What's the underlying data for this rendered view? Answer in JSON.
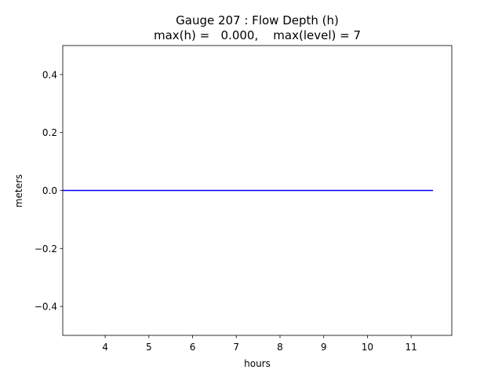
{
  "chart_data": {
    "type": "line",
    "title": "Gauge 207 : Flow Depth (h)",
    "subtitle": "max(h) =   0.000,    max(level) = 7",
    "x_label": "hours",
    "y_label": "meters",
    "x": [
      3.03,
      11.5
    ],
    "series": [
      {
        "color": "#0000ff",
        "values": [
          0,
          0
        ]
      }
    ],
    "xlim": [
      3.03,
      11.93
    ],
    "xticks": [
      4,
      5,
      6,
      7,
      8,
      9,
      10,
      11
    ],
    "ylim": [
      -0.5,
      0.5
    ],
    "yticks": [
      {
        "value": -0.4,
        "label": "−0.4"
      },
      {
        "value": -0.2,
        "label": "−0.2"
      },
      {
        "value": 0,
        "label": "0.0"
      },
      0.2,
      0.4
    ],
    "grid": false
  }
}
